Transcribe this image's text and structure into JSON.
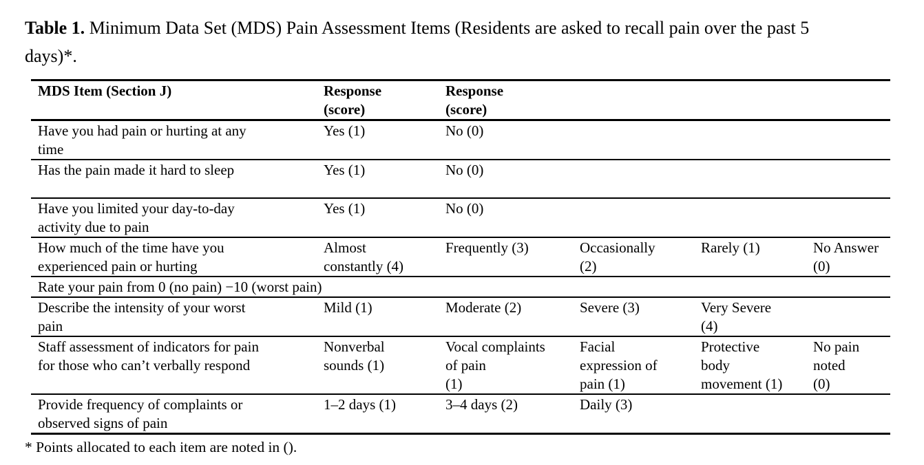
{
  "title": {
    "label": "Table 1.",
    "text": "Minimum Data Set (MDS) Pain Assessment Items (Residents are asked to recall pain over the past 5\ndays)*."
  },
  "footnote": "* Points allocated to each item are noted in ().",
  "table": {
    "header": [
      "MDS Item (Section J)",
      "Response\n(score)",
      "Response\n(score)",
      "",
      "",
      ""
    ],
    "rows": [
      {
        "cells": [
          "Have you had pain or hurting at any\ntime",
          "Yes (1)",
          "No (0)",
          "",
          "",
          ""
        ]
      },
      {
        "cells": [
          "Has the pain made it hard to sleep",
          "Yes (1)",
          "No (0)",
          "",
          "",
          ""
        ]
      },
      {
        "cells": [
          "Have you limited your day-to-day\nactivity due to pain",
          "Yes (1)",
          "No (0)",
          "",
          "",
          ""
        ]
      },
      {
        "cells": [
          "How much of the time have you\nexperienced pain or hurting",
          "Almost\nconstantly (4)",
          "Frequently (3)",
          "Occasionally\n(2)",
          "Rarely (1)",
          "No Answer\n(0)"
        ]
      },
      {
        "cells": [
          "Rate your pain from 0 (no pain) −10 (worst pain)"
        ],
        "colspan": 6
      },
      {
        "cells": [
          "Describe the intensity of your worst\npain",
          "Mild (1)",
          "Moderate (2)",
          "Severe (3)",
          "Very Severe\n(4)",
          ""
        ]
      },
      {
        "cells": [
          "Staff assessment of indicators for pain\nfor those who can’t verbally respond",
          "Nonverbal\nsounds (1)",
          "Vocal complaints\nof pain\n(1)",
          "Facial\nexpression of\npain (1)",
          "Protective\nbody\nmovement (1)",
          "No pain\nnoted\n(0)"
        ]
      },
      {
        "cells": [
          "Provide frequency of complaints or\nobserved signs of pain",
          "1–2 days (1)",
          "3–4 days (2)",
          "Daily (3)",
          "",
          ""
        ]
      }
    ]
  }
}
